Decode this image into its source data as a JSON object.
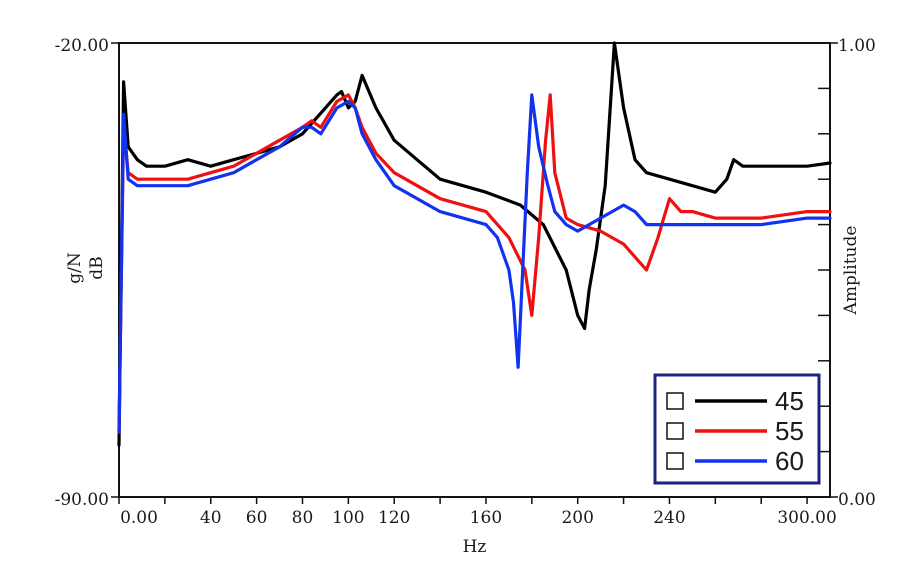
{
  "chart_data": {
    "type": "line",
    "xlabel": "Hz",
    "ylabel_left": [
      "g/N",
      "dB"
    ],
    "ylabel_right": "Amplitude",
    "xlim": [
      0,
      310
    ],
    "ylim_left": [
      -90,
      -20
    ],
    "ylim_right": [
      0,
      1
    ],
    "x_ticks": [
      {
        "value": 0,
        "label": "0.00"
      },
      {
        "value": 40,
        "label": "40"
      },
      {
        "value": 60,
        "label": "60"
      },
      {
        "value": 80,
        "label": "80"
      },
      {
        "value": 100,
        "label": "100"
      },
      {
        "value": 120,
        "label": "120"
      },
      {
        "value": 160,
        "label": "160"
      },
      {
        "value": 200,
        "label": "200"
      },
      {
        "value": 240,
        "label": "240"
      },
      {
        "value": 300,
        "label": "300.00"
      }
    ],
    "x_minor_ticks": [
      0,
      20,
      40,
      60,
      80,
      100,
      120,
      140,
      160,
      180,
      200,
      220,
      240,
      260,
      280,
      300
    ],
    "y_left_ticks": [
      {
        "value": -20,
        "label": "-20.00"
      },
      {
        "value": -90,
        "label": "-90.00"
      }
    ],
    "y_right_ticks": [
      {
        "value": 1,
        "label": "1.00"
      },
      {
        "value": 0,
        "label": "0.00"
      }
    ],
    "y_right_minor_ticks": [
      0.9,
      0.8,
      0.7,
      0.6,
      0.5,
      0.4,
      0.3,
      0.2,
      0.1
    ],
    "grid": false,
    "legend_position": "bottom-right",
    "series": [
      {
        "name": "45",
        "color": "#000000",
        "x": [
          0,
          2,
          4,
          8,
          12,
          20,
          30,
          40,
          50,
          60,
          70,
          80,
          90,
          95,
          97,
          100,
          103,
          106,
          112,
          120,
          140,
          160,
          175,
          185,
          195,
          200,
          203,
          205,
          208,
          212,
          216,
          220,
          225,
          230,
          240,
          250,
          260,
          265,
          268,
          272,
          280,
          290,
          300,
          310
        ],
        "y": [
          -82,
          -26,
          -36,
          -38,
          -39,
          -39,
          -38,
          -39,
          -38,
          -37,
          -36,
          -34,
          -30,
          -28,
          -27.5,
          -30,
          -29,
          -25,
          -30,
          -35,
          -41,
          -43,
          -45,
          -48,
          -55,
          -62,
          -64,
          -58,
          -52,
          -42,
          -20,
          -30,
          -38,
          -40,
          -41,
          -42,
          -43,
          -41,
          -38,
          -39,
          -39,
          -39,
          -39,
          -38.5
        ]
      },
      {
        "name": "55",
        "color": "#ee1111",
        "x": [
          0,
          2,
          4,
          8,
          12,
          20,
          30,
          40,
          50,
          60,
          70,
          80,
          84,
          88,
          95,
          100,
          103,
          106,
          112,
          120,
          140,
          160,
          170,
          177,
          180,
          183,
          186,
          188,
          190,
          195,
          200,
          210,
          220,
          225,
          230,
          235,
          240,
          245,
          250,
          260,
          270,
          280,
          300,
          310
        ],
        "y": [
          -80,
          -33,
          -40,
          -41,
          -41,
          -41,
          -41,
          -40,
          -39,
          -37,
          -35,
          -33,
          -32,
          -33,
          -29,
          -28,
          -30,
          -33,
          -37,
          -40,
          -44,
          -46,
          -50,
          -55,
          -62,
          -50,
          -35,
          -28,
          -40,
          -47,
          -48,
          -49,
          -51,
          -53,
          -55,
          -50,
          -44,
          -46,
          -46,
          -47,
          -47,
          -47,
          -46,
          -46
        ]
      },
      {
        "name": "60",
        "color": "#1133ee",
        "x": [
          0,
          2,
          4,
          8,
          12,
          20,
          30,
          40,
          50,
          60,
          70,
          80,
          84,
          88,
          95,
          100,
          103,
          106,
          112,
          120,
          140,
          160,
          165,
          170,
          172,
          174,
          176,
          178,
          180,
          183,
          187,
          190,
          195,
          200,
          210,
          220,
          225,
          230,
          240,
          250,
          260,
          270,
          280,
          300,
          310
        ],
        "y": [
          -80,
          -31,
          -41,
          -42,
          -42,
          -42,
          -42,
          -41,
          -40,
          -38,
          -36,
          -33,
          -33,
          -34,
          -30,
          -29,
          -30,
          -34,
          -38,
          -42,
          -46,
          -48,
          -50,
          -55,
          -60,
          -70,
          -55,
          -40,
          -28,
          -36,
          -42,
          -46,
          -48,
          -49,
          -47,
          -45,
          -46,
          -48,
          -48,
          -48,
          -48,
          -48,
          -48,
          -47,
          -47
        ]
      }
    ]
  },
  "legend": {
    "items": [
      {
        "label": "45",
        "color": "#000000"
      },
      {
        "label": "55",
        "color": "#ee1111"
      },
      {
        "label": "60",
        "color": "#1133ee"
      }
    ],
    "border_color": "#1a237e"
  }
}
